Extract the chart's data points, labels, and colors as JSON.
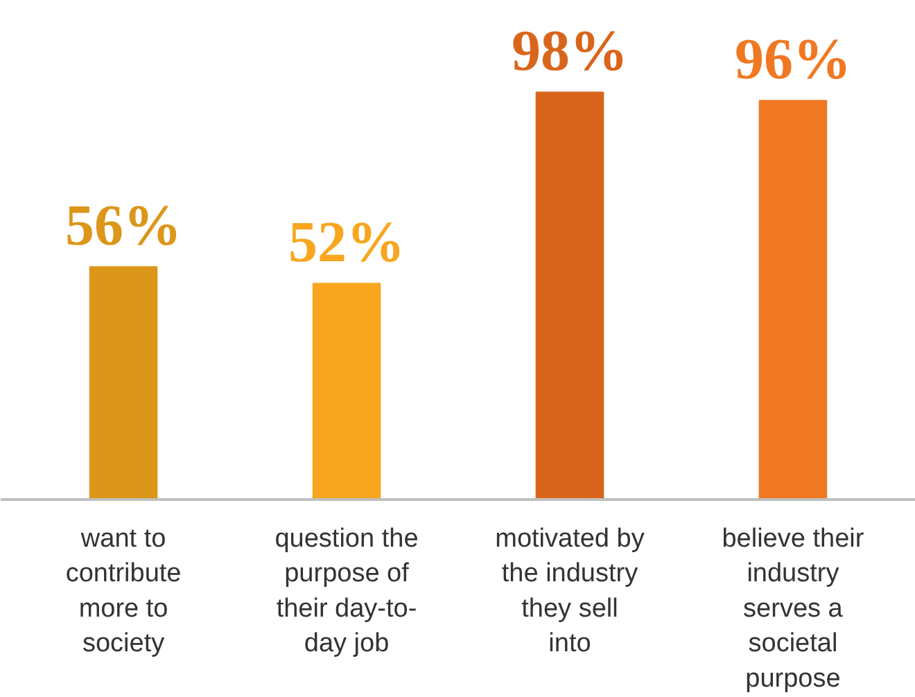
{
  "chart_data": {
    "type": "bar",
    "categories": [
      "want to contribute more to society",
      "question the purpose of their day-to-day job",
      "motivated by the industry they sell into",
      "believe their industry serves a societal purpose"
    ],
    "values": [
      56,
      52,
      98,
      96
    ],
    "colors": [
      "#dc961a",
      "#f7a61e",
      "#d9651c",
      "#f07822"
    ],
    "value_labels": [
      "56%",
      "52%",
      "98%",
      "96%"
    ],
    "grid": false
  }
}
